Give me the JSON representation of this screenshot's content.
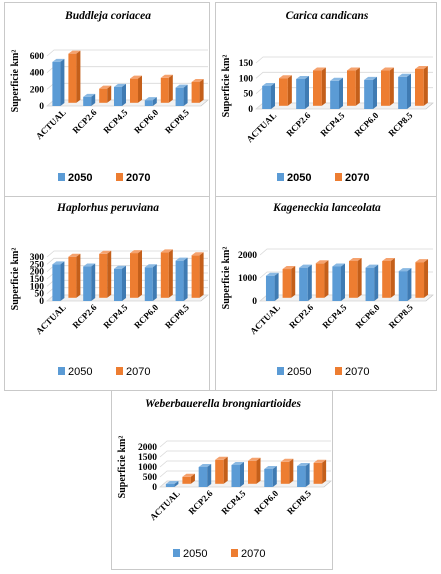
{
  "colors": {
    "s2050": "#5b9bd5",
    "s2050_top": "#8ab9e3",
    "s2050_side": "#3f7bb3",
    "s2070": "#ed7d31",
    "s2070_top": "#f5a26e",
    "s2070_side": "#c45f1a",
    "grid": "#d9d9d9",
    "floor": "#bfbfbf"
  },
  "chart_data": [
    {
      "type": "bar",
      "title": "Buddleja coriacea",
      "ylabel": "Superficie km²",
      "categories": [
        "ACTUAL",
        "RCP2.6",
        "RCP4.5",
        "RCP6.0",
        "RCP8.5"
      ],
      "series": [
        {
          "name": "2050",
          "values": [
            530,
            110,
            230,
            70,
            220
          ]
        },
        {
          "name": "2070",
          "values": [
            590,
            170,
            290,
            300,
            250
          ]
        }
      ],
      "ylim": [
        0,
        600
      ],
      "yticks": [
        "0",
        "200",
        "400",
        "600"
      ],
      "legend": [
        "2050",
        "2070"
      ],
      "legend_bold": true
    },
    {
      "type": "bar",
      "title": "Carica candicans",
      "ylabel": "Superficie km²",
      "categories": [
        "ACTUAL",
        "RCP2.6",
        "RCP4.5",
        "RCP6.0",
        "RCP8.5"
      ],
      "series": [
        {
          "name": "2050",
          "values": [
            75,
            98,
            92,
            95,
            105
          ]
        },
        {
          "name": "2070",
          "values": [
            90,
            115,
            115,
            115,
            120
          ]
        }
      ],
      "ylim": [
        0,
        150
      ],
      "yticks": [
        "0",
        "50",
        "100",
        "150"
      ],
      "legend": [
        "2050",
        "2070"
      ],
      "legend_bold": true
    },
    {
      "type": "bar",
      "title": "Haplorhus peruviana",
      "ylabel": "Superficie km²",
      "categories": [
        "ACTUAL",
        "RCP2.6",
        "RCP4.5",
        "RCP6.0",
        "RCP8.5"
      ],
      "series": [
        {
          "name": "2050",
          "values": [
            250,
            235,
            220,
            230,
            275
          ]
        },
        {
          "name": "2070",
          "values": [
            280,
            300,
            305,
            310,
            290
          ]
        }
      ],
      "ylim": [
        0,
        300
      ],
      "yticks": [
        "0",
        "50",
        "100",
        "150",
        "200",
        "250",
        "300"
      ],
      "legend": [
        "2050",
        "2070"
      ],
      "legend_bold": false
    },
    {
      "type": "bar",
      "title": "Kageneckia lanceolata",
      "ylabel": "Superficie km²",
      "categories": [
        "ACTUAL",
        "RCP2.6",
        "RCP4.5",
        "RCP6.0",
        "RCP8.5"
      ],
      "series": [
        {
          "name": "2050",
          "values": [
            1100,
            1450,
            1500,
            1450,
            1300
          ]
        },
        {
          "name": "2070",
          "values": [
            1250,
            1500,
            1600,
            1600,
            1550
          ]
        }
      ],
      "ylim": [
        0,
        2000
      ],
      "yticks": [
        "0",
        "1000",
        "2000"
      ],
      "legend": [
        "2050",
        "2070"
      ],
      "legend_bold": false
    },
    {
      "type": "bar",
      "title": "Weberbauerella brongniartioides",
      "ylabel": "Superficie km²",
      "categories": [
        "ACTUAL",
        "RCP2.6",
        "RCP4.5",
        "RCP6.0",
        "RCP8.5"
      ],
      "series": [
        {
          "name": "2050",
          "values": [
            150,
            1000,
            1100,
            900,
            1050
          ]
        },
        {
          "name": "2070",
          "values": [
            350,
            1200,
            1150,
            1100,
            1050
          ]
        }
      ],
      "ylim": [
        0,
        2000
      ],
      "yticks": [
        "0",
        "500",
        "1000",
        "1500",
        "2000"
      ],
      "legend": [
        "2050",
        "2070"
      ],
      "legend_bold": false
    }
  ]
}
